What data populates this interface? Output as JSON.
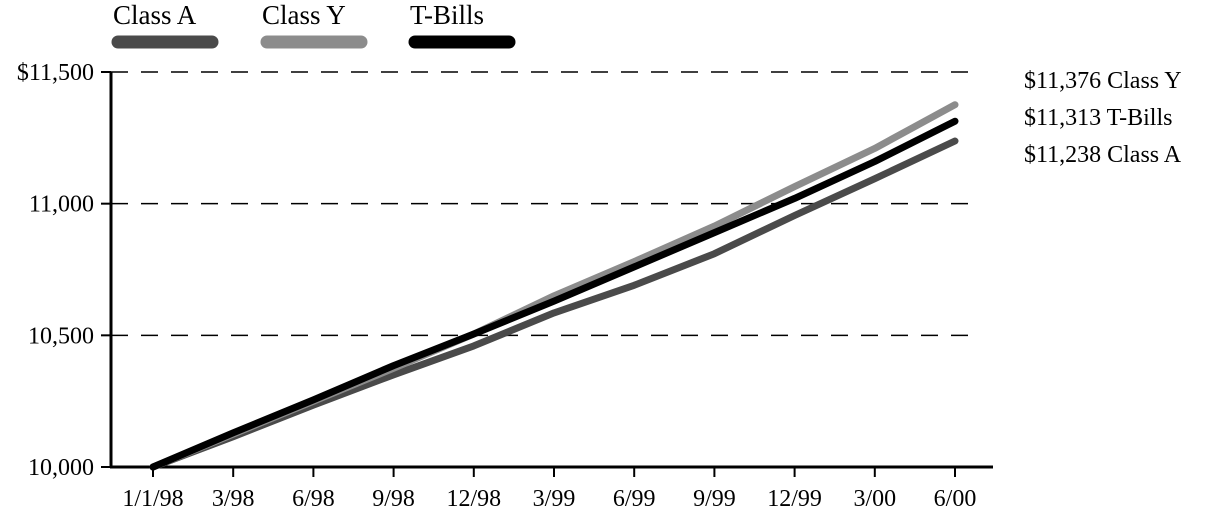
{
  "chart_data": {
    "type": "line",
    "title": "",
    "xlabel": "",
    "ylabel": "",
    "categories": [
      "1/1/98",
      "3/98",
      "6/98",
      "9/98",
      "12/98",
      "3/99",
      "6/99",
      "9/99",
      "12/99",
      "3/00",
      "6/00"
    ],
    "y_ticks": [
      "10,000",
      "10,500",
      "11,000",
      "$11,500"
    ],
    "y_tick_values": [
      10000,
      10500,
      11000,
      11500
    ],
    "ylim": [
      10000,
      11500
    ],
    "grid": "horizontal dashed",
    "legend": "top-left",
    "series": [
      {
        "name": "Class A",
        "color": "#4a4a4a",
        "values": [
          10000,
          10115,
          10235,
          10350,
          10460,
          10585,
          10690,
          10810,
          10955,
          11095,
          11238
        ],
        "end_label": "$11,238 Class A"
      },
      {
        "name": "Class Y",
        "color": "#8c8c8c",
        "values": [
          10000,
          10125,
          10250,
          10375,
          10505,
          10650,
          10780,
          10915,
          11065,
          11210,
          11376
        ],
        "end_label": "$11,376 Class Y"
      },
      {
        "name": "T-Bills",
        "color": "#000000",
        "values": [
          10000,
          10130,
          10255,
          10385,
          10505,
          10630,
          10760,
          10890,
          11020,
          11160,
          11313
        ],
        "end_label": "$11,313 T-Bills"
      }
    ],
    "end_label_order": [
      "Class Y",
      "T-Bills",
      "Class A"
    ]
  }
}
